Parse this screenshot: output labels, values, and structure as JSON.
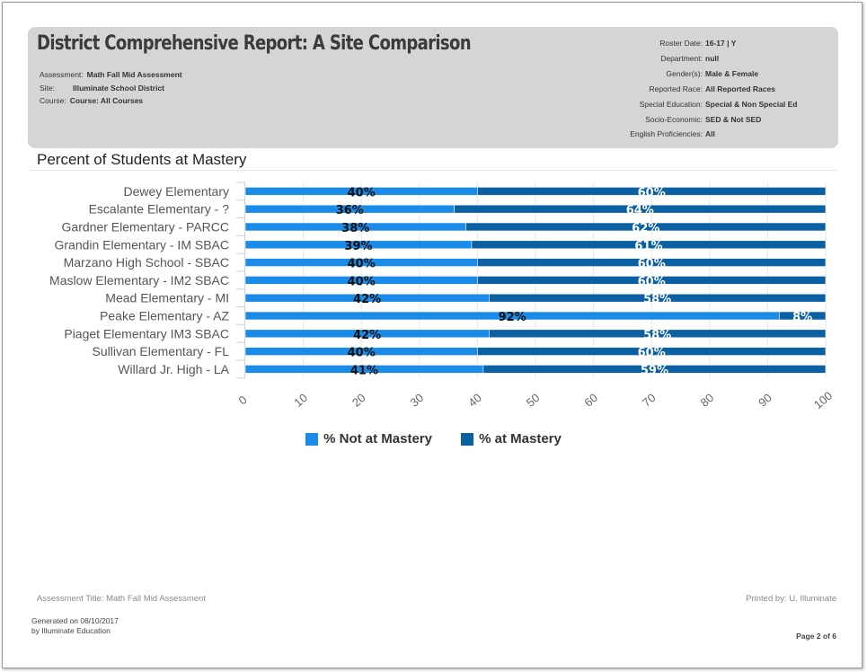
{
  "report": {
    "title": "District Comprehensive Report: A Site Comparison",
    "left_meta": [
      {
        "label": "Assessment:",
        "value": "Math Fall Mid Assessment"
      },
      {
        "label": "Site:",
        "value": "Illuminate School District"
      },
      {
        "label": "Course:",
        "value": "Course: All Courses"
      }
    ],
    "right_meta": [
      {
        "label": "Roster Date:",
        "value": "16-17 | Y"
      },
      {
        "label": "Department:",
        "value": "null"
      },
      {
        "label": "Gender(s):",
        "value": "Male & Female"
      },
      {
        "label": "Reported Race:",
        "value": "All Reported Races"
      },
      {
        "label": "Special Education:",
        "value": "Special & Non Special Ed"
      },
      {
        "label": "Socio-Economic:",
        "value": "SED & Not SED"
      },
      {
        "label": "English Proficiencies:",
        "value": "All"
      }
    ]
  },
  "chart_title": "Percent of Students at Mastery",
  "chart_data": {
    "type": "bar",
    "orientation": "horizontal",
    "stacked": true,
    "categories": [
      "Dewey Elementary",
      "Escalante Elementary - ?",
      "Gardner Elementary - PARCC",
      "Grandin Elementary - IM SBAC",
      "Marzano High School - SBAC",
      "Maslow Elementary - IM2 SBAC",
      "Mead Elementary - MI",
      "Peake Elementary - AZ",
      "Piaget Elementary IM3 SBAC",
      "Sullivan Elementary - FL",
      "Willard Jr. High - LA"
    ],
    "series": [
      {
        "name": "% Not at Mastery",
        "color": "#1a8be8",
        "values": [
          40,
          36,
          38,
          39,
          40,
          40,
          42,
          92,
          42,
          40,
          41
        ],
        "labels": [
          "40%",
          "36%",
          "38%",
          "39%",
          "40%",
          "40%",
          "42%",
          "92%",
          "42%",
          "40%",
          "41%"
        ]
      },
      {
        "name": "% at Mastery",
        "color": "#0b5fa3",
        "values": [
          60,
          64,
          62,
          61,
          60,
          60,
          58,
          8,
          58,
          60,
          59
        ],
        "labels": [
          "60%",
          "64%",
          "62%",
          "61%",
          "60%",
          "60%",
          "58%",
          "8%",
          "58%",
          "60%",
          "59%"
        ]
      }
    ],
    "xlim": [
      0,
      100
    ],
    "xticks": [
      "0",
      "10",
      "20",
      "30",
      "40",
      "50",
      "60",
      "70",
      "80",
      "90",
      "100"
    ],
    "grid": true,
    "legend": "bottom"
  },
  "footer": {
    "assessment_title": "Assessment Title: Math Fall Mid Assessment",
    "printed_by": "Printed by: U. Illuminate",
    "generated_line1": "Generated on 08/10/2017",
    "generated_line2": "by Illuminate Education",
    "page": "Page 2 of 6"
  }
}
